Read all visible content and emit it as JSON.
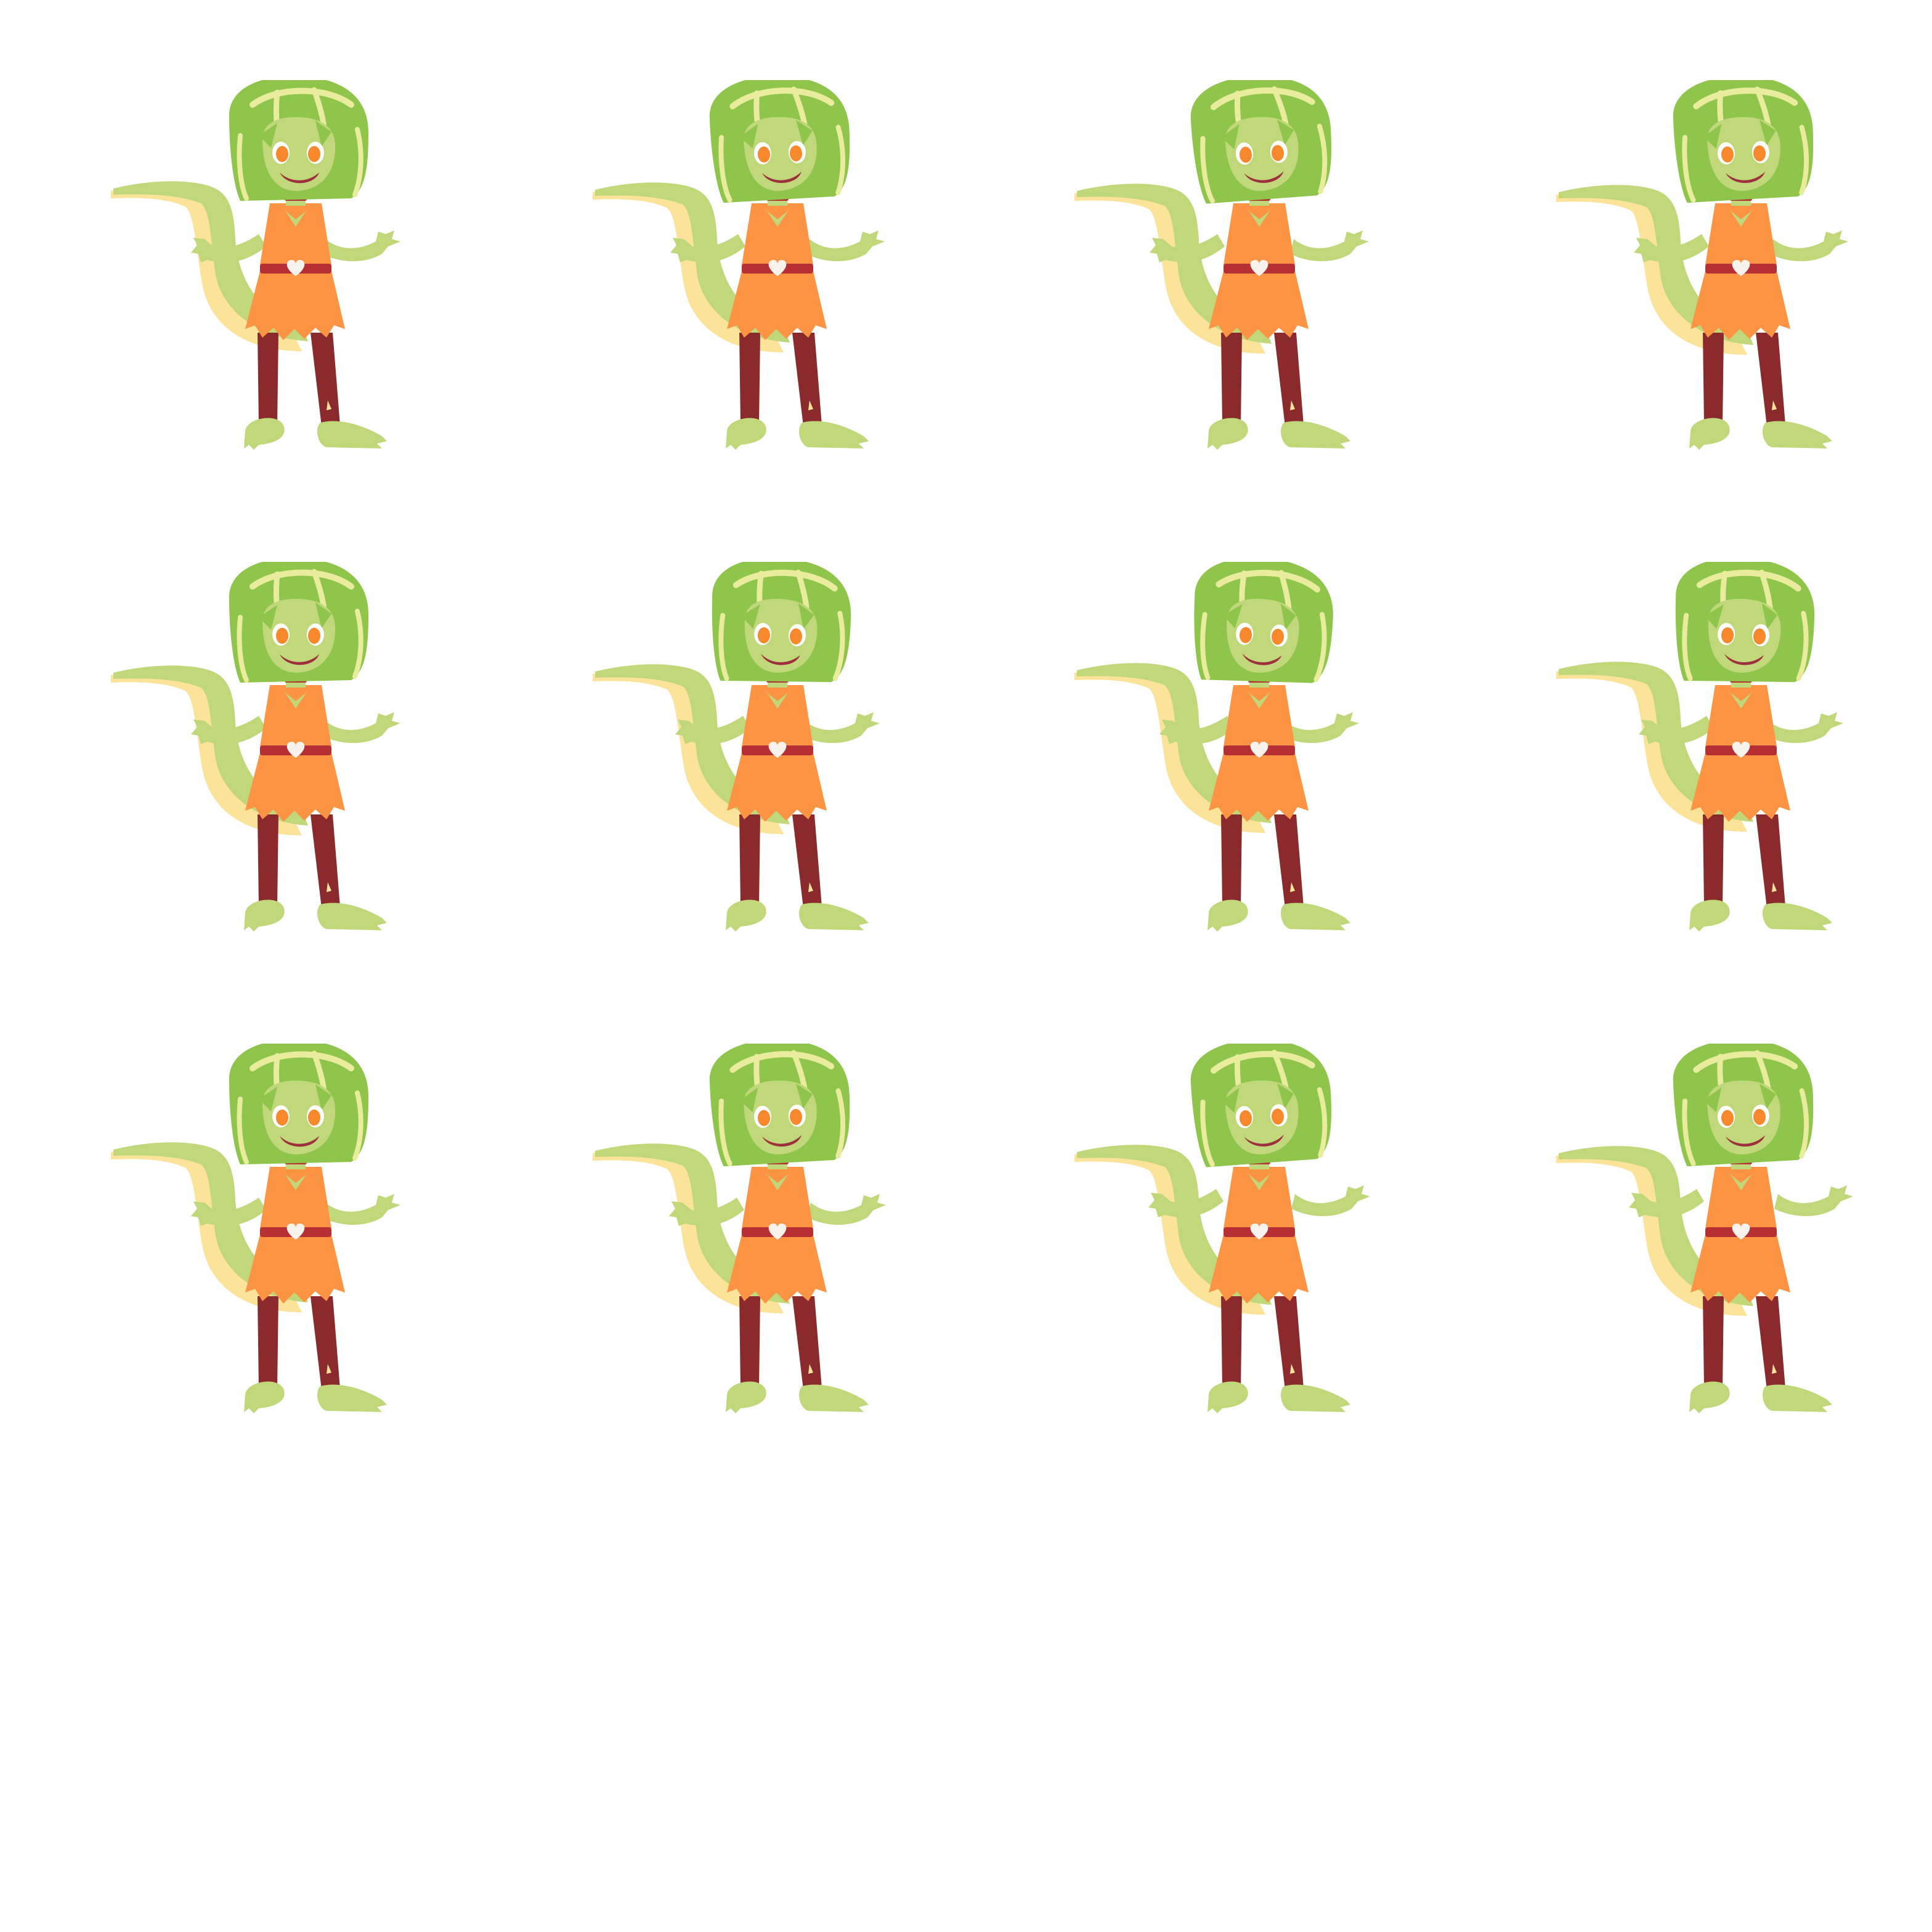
{
  "sprite_sheet": {
    "columns": 4,
    "rows": 3,
    "frame_count": 12,
    "subject": "lizard-girl-character",
    "colors": {
      "background": "#ffffff",
      "hair": "#8ec54a",
      "hair_highlight": "#e9ec9c",
      "skin": "#c0d77a",
      "tail_belly": "#fbe39a",
      "dress": "#fd9444",
      "dress_shadow": "#f57f2a",
      "legs": "#8a2a2d",
      "belt": "#b52f33",
      "heart": "#f7f2ec",
      "eye_iris": "#f7882b",
      "eye_white": "#ffffff",
      "mouth": "#9e2f3c"
    },
    "frames": [
      {
        "pose": "arms-out",
        "arm_shift": 0,
        "tail_shift": 0,
        "head_tilt": 0
      },
      {
        "pose": "arms-out",
        "arm_shift": 4,
        "tail_shift": 2,
        "head_tilt": -2
      },
      {
        "pose": "arms-out",
        "arm_shift": 8,
        "tail_shift": 4,
        "head_tilt": -3
      },
      {
        "pose": "arms-out",
        "arm_shift": 4,
        "tail_shift": 6,
        "head_tilt": -2
      },
      {
        "pose": "arms-out",
        "arm_shift": 0,
        "tail_shift": 4,
        "head_tilt": 0
      },
      {
        "pose": "arms-out",
        "arm_shift": -4,
        "tail_shift": 2,
        "head_tilt": 2
      },
      {
        "pose": "arms-out",
        "arm_shift": -8,
        "tail_shift": 0,
        "head_tilt": 3
      },
      {
        "pose": "arms-out",
        "arm_shift": -4,
        "tail_shift": -2,
        "head_tilt": 2
      },
      {
        "pose": "arms-out",
        "arm_shift": 0,
        "tail_shift": -4,
        "head_tilt": 0
      },
      {
        "pose": "arms-out",
        "arm_shift": 6,
        "tail_shift": -2,
        "head_tilt": -2
      },
      {
        "pose": "arms-up",
        "arm_shift": 10,
        "tail_shift": 0,
        "head_tilt": -3
      },
      {
        "pose": "arms-up",
        "arm_shift": 12,
        "tail_shift": 2,
        "head_tilt": -2
      }
    ]
  }
}
